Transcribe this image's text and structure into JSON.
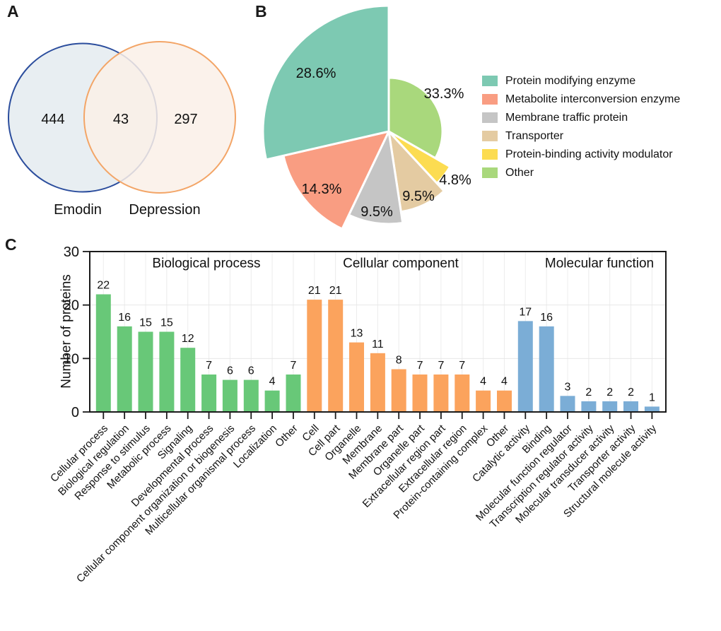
{
  "panels": {
    "a": "A",
    "b": "B",
    "c": "C"
  },
  "venn": {
    "sets": [
      {
        "label": "Emodin",
        "count": "444",
        "stroke": "#2b4d9d",
        "fill": "#e8eef2"
      },
      {
        "label": "Depression",
        "count": "297",
        "stroke": "#f3a567",
        "fill": "#faf0e8"
      }
    ],
    "overlap_count": "43"
  },
  "chart_data": [
    {
      "type": "pie",
      "legend_position": "right",
      "slices": [
        {
          "label": "Other",
          "pct": 33.3,
          "pct_label": "33.3%",
          "color": "#a9d87c",
          "radius_px": 76
        },
        {
          "label": "Protein-binding activity modulator",
          "pct": 4.8,
          "pct_label": "4.8%",
          "color": "#fcdc51",
          "radius_px": 100
        },
        {
          "label": "Transporter",
          "pct": 9.5,
          "pct_label": "9.5%",
          "color": "#e4cba2",
          "radius_px": 115
        },
        {
          "label": "Membrane traffic protein",
          "pct": 9.5,
          "pct_label": "9.5%",
          "color": "#c5c5c5",
          "radius_px": 131
        },
        {
          "label": "Metabolite interconversion enzyme",
          "pct": 14.3,
          "pct_label": "14.3%",
          "color": "#f99d82",
          "radius_px": 153
        },
        {
          "label": "Protein modifying enzyme",
          "pct": 28.6,
          "pct_label": "28.6%",
          "color": "#7dc9b2",
          "radius_px": 178
        }
      ],
      "legend": [
        {
          "label": "Protein modifying enzyme",
          "color": "#7dc9b2"
        },
        {
          "label": "Metabolite interconversion enzyme",
          "color": "#f99d82"
        },
        {
          "label": "Membrane traffic protein",
          "color": "#c5c5c5"
        },
        {
          "label": "Transporter",
          "color": "#e4cba2"
        },
        {
          "label": "Protein-binding activity modulator",
          "color": "#fcdc51"
        },
        {
          "label": "Other",
          "color": "#a9d87c"
        }
      ]
    },
    {
      "type": "bar",
      "ylabel": "Number of proteins",
      "ylim": [
        0,
        30
      ],
      "yticks": [
        0,
        10,
        20,
        30
      ],
      "grid": true,
      "groups": [
        {
          "name": "Biological process",
          "bar_color": "#68c878",
          "title_color": "#1ba53e",
          "categories": [
            "Cellular process",
            "Biological regulation",
            "Response to stimulus",
            "Metabolic process",
            "Signaling",
            "Developmental process",
            "Cellular component organization or biogenesis",
            "Multicellular organismal process",
            "Localization",
            "Other"
          ],
          "values": [
            22,
            16,
            15,
            15,
            12,
            7,
            6,
            6,
            4,
            7
          ]
        },
        {
          "name": "Cellular component",
          "bar_color": "#fba35d",
          "title_color": "#f67e22",
          "categories": [
            "Cell",
            "Cell part",
            "Organelle",
            "Membrane",
            "Membrane part",
            "Organelle part",
            "Extracellular region part",
            "Extracellular region",
            "Protein-containing complex",
            "Other"
          ],
          "values": [
            21,
            21,
            13,
            11,
            8,
            7,
            7,
            7,
            4,
            4
          ]
        },
        {
          "name": "Molecular function",
          "bar_color": "#7badd6",
          "title_color": "#4489cb",
          "categories": [
            "Catalytic activity",
            "Binding",
            "Molecular function regulator",
            "Transcription regulator activity",
            "Molecular transducer activity",
            "Transporter activity",
            "Structural molecule activity"
          ],
          "values": [
            17,
            16,
            3,
            2,
            2,
            2,
            1
          ]
        }
      ]
    }
  ]
}
